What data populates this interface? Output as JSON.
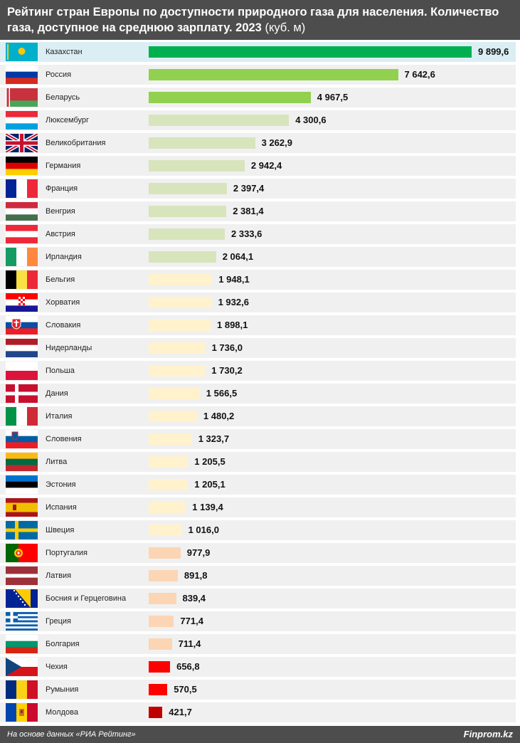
{
  "header": {
    "title_bold": "Рейтинг стран Европы по доступности природного газа для населения. Количество газа, доступное на среднюю зарплату. 2023",
    "unit": "(куб. м)"
  },
  "footer": {
    "source": "На основе данных «РИА Рейтинг»",
    "brand": "Finprom.kz"
  },
  "chart_data": {
    "type": "bar",
    "orientation": "horizontal",
    "xlim": [
      0,
      9900
    ],
    "categories": [
      "Казахстан",
      "Россия",
      "Беларусь",
      "Люксембург",
      "Великобритания",
      "Германия",
      "Франция",
      "Венгрия",
      "Австрия",
      "Ирландия",
      "Бельгия",
      "Хорватия",
      "Словакия",
      "Нидерланды",
      "Польша",
      "Дания",
      "Италия",
      "Словения",
      "Литва",
      "Эстония",
      "Испания",
      "Швеция",
      "Португалия",
      "Латвия",
      "Босния и Герцеговина",
      "Греция",
      "Болгария",
      "Чехия",
      "Румыния",
      "Молдова"
    ],
    "values": [
      9899.6,
      7642.6,
      4967.5,
      4300.6,
      3262.9,
      2942.4,
      2397.4,
      2381.4,
      2333.6,
      2064.1,
      1948.1,
      1932.6,
      1898.1,
      1736.0,
      1730.2,
      1566.5,
      1480.2,
      1323.7,
      1205.5,
      1205.1,
      1139.4,
      1016.0,
      977.9,
      891.8,
      839.4,
      771.4,
      711.4,
      656.8,
      570.5,
      421.7
    ],
    "value_labels": [
      "9 899,6",
      "7 642,6",
      "4 967,5",
      "4 300,6",
      "3 262,9",
      "2 942,4",
      "2 397,4",
      "2 381,4",
      "2 333,6",
      "2 064,1",
      "1 948,1",
      "1 932,6",
      "1 898,1",
      "1 736,0",
      "1 730,2",
      "1 566,5",
      "1 480,2",
      "1 323,7",
      "1 205,5",
      "1 205,1",
      "1 139,4",
      "1 016,0",
      "977,9",
      "891,8",
      "839,4",
      "771,4",
      "711,4",
      "656,8",
      "570,5",
      "421,7"
    ],
    "bar_colors": [
      "#00b050",
      "#92d050",
      "#92d050",
      "#d8e4bc",
      "#d8e4bc",
      "#d8e4bc",
      "#d8e4bc",
      "#d8e4bc",
      "#d8e4bc",
      "#d8e4bc",
      "#fff2cc",
      "#fff2cc",
      "#fff2cc",
      "#fff2cc",
      "#fff2cc",
      "#fff2cc",
      "#fff2cc",
      "#fff2cc",
      "#fff2cc",
      "#fff2cc",
      "#fff2cc",
      "#fff2cc",
      "#fcd5b4",
      "#fcd5b4",
      "#fcd5b4",
      "#fcd5b4",
      "#fcd5b4",
      "#ff0000",
      "#ff0000",
      "#c00000"
    ],
    "highlighted_category": "Казахстан",
    "flag_icons": [
      "kazakhstan-flag-icon",
      "russia-flag-icon",
      "belarus-flag-icon",
      "luxembourg-flag-icon",
      "united-kingdom-flag-icon",
      "germany-flag-icon",
      "france-flag-icon",
      "hungary-flag-icon",
      "austria-flag-icon",
      "ireland-flag-icon",
      "belgium-flag-icon",
      "croatia-flag-icon",
      "slovakia-flag-icon",
      "netherlands-flag-icon",
      "poland-flag-icon",
      "denmark-flag-icon",
      "italy-flag-icon",
      "slovenia-flag-icon",
      "lithuania-flag-icon",
      "estonia-flag-icon",
      "spain-flag-icon",
      "sweden-flag-icon",
      "portugal-flag-icon",
      "latvia-flag-icon",
      "bosnia-flag-icon",
      "greece-flag-icon",
      "bulgaria-flag-icon",
      "czechia-flag-icon",
      "romania-flag-icon",
      "moldova-flag-icon"
    ]
  },
  "colors": {
    "header_bg": "#4d4d4d",
    "row_bg": "#f0f0f0",
    "highlight_row_bg": "#dbeef4"
  }
}
